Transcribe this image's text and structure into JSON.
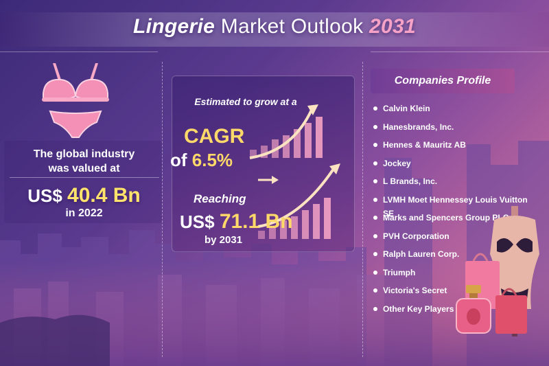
{
  "header": {
    "title_word1": "Lingerie",
    "title_word2": "Market Outlook",
    "title_year": "2031"
  },
  "left_panel": {
    "intro_line1": "The global industry",
    "intro_line2": "was valued at",
    "currency": "US$",
    "amount": "40.4 Bn",
    "year_text": "in 2022"
  },
  "middle_panel": {
    "estimate_text": "Estimated to grow at a",
    "cagr_label": "CAGR",
    "cagr_prefix": "of",
    "cagr_value": "6.5%",
    "reach_text": "Reaching",
    "reach_currency": "US$",
    "reach_amount": "71.1 Bn",
    "reach_year": "by 2031",
    "growth_bars_top": [
      0.2,
      0.3,
      0.45,
      0.55,
      0.7,
      0.85,
      1.0
    ],
    "growth_bars_bottom": [
      0.2,
      0.3,
      0.45,
      0.55,
      0.7,
      0.85,
      1.0
    ]
  },
  "right_panel": {
    "title": "Companies Profile",
    "companies": [
      "Calvin Klein",
      "Hanesbrands, Inc.",
      "Hennes & Mauritz AB",
      "Jockey",
      "L Brands, Inc.",
      "LVMH Moet Hennessey Louis Vuitton SE",
      "Marks and Spencers Group PLC",
      "PVH Corporation",
      "Ralph Lauren Corp.",
      "Triumph",
      "Victoria's Secret",
      "Other Key Players"
    ]
  },
  "colors": {
    "accent_pink": "#f6a2c6",
    "highlight_yellow": "#ffd86a",
    "bar_color": "#f3a2c4"
  },
  "icons": [
    "bra-icon",
    "growth-arrow-icon",
    "mannequin-icon",
    "shopping-bag-icon",
    "perfume-icon"
  ]
}
